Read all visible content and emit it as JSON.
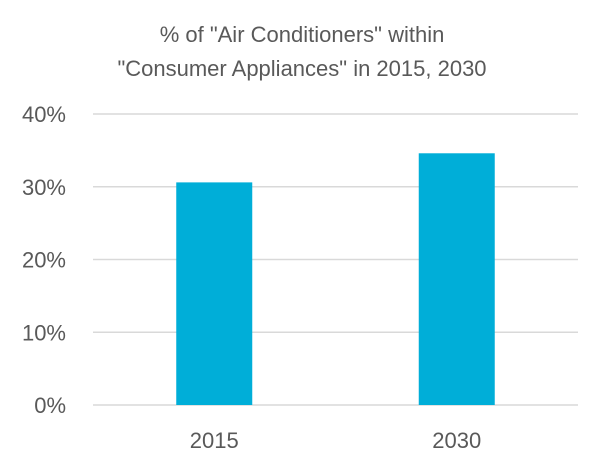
{
  "chart_data": {
    "type": "bar",
    "title_lines": [
      "% of \"Air Conditioners\" within",
      "\"Consumer Appliances\" in 2015, 2030"
    ],
    "categories": [
      "2015",
      "2030"
    ],
    "values": [
      30.6,
      34.6
    ],
    "value_unit": "%",
    "xlabel": "",
    "ylabel": "",
    "ylim": [
      0,
      40
    ],
    "y_ticks": [
      "0%",
      "10%",
      "20%",
      "30%",
      "40%"
    ],
    "grid": true,
    "legend": "none",
    "bar_color": "#00AED8"
  }
}
